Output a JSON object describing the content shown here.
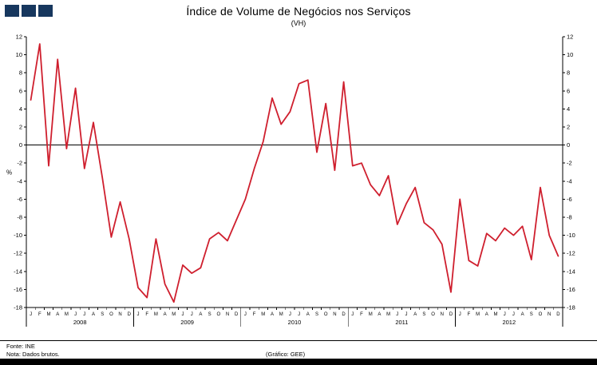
{
  "logo": {
    "color": "#17375E",
    "square_count": 3
  },
  "footer": {
    "source": "Fonte: INE",
    "note": "Nota: Dados brutos.",
    "credit": "(Gráfico: GEE)"
  },
  "chart_data": {
    "type": "line",
    "title": "Índice de Volume de Negócios nos Serviços",
    "subtitle": "(VH)",
    "ylabel": "%",
    "xlabel": "",
    "ylim": [
      -18,
      12
    ],
    "ytick_step": 2,
    "grid": false,
    "zero_line": true,
    "legend": "none",
    "series_color": "#CF1F2E",
    "years": [
      "2008",
      "2009",
      "2010",
      "2011",
      "2012"
    ],
    "month_letters": [
      "J",
      "F",
      "M",
      "A",
      "M",
      "J",
      "J",
      "A",
      "S",
      "O",
      "N",
      "D"
    ],
    "series_name": "Índice de Volume de Negócios nos Serviços (VH)",
    "values": [
      5.0,
      11.2,
      -2.3,
      9.5,
      -0.4,
      6.3,
      -2.6,
      2.5,
      -3.6,
      -10.2,
      -6.3,
      -10.4,
      -15.8,
      -16.9,
      -10.4,
      -15.4,
      -17.4,
      -13.3,
      -14.2,
      -13.6,
      -10.4,
      -9.7,
      -10.6,
      -8.3,
      -6.0,
      -2.6,
      0.4,
      5.2,
      2.3,
      3.7,
      6.8,
      7.2,
      -0.8,
      4.6,
      -2.8,
      7.0,
      -2.3,
      -2.0,
      -4.4,
      -5.6,
      -3.4,
      -8.8,
      -6.5,
      -4.7,
      -8.6,
      -9.4,
      -11.0,
      -16.3,
      -6.0,
      -12.8,
      -13.4,
      -9.8,
      -10.6,
      -9.2,
      -10.0,
      -9.0,
      -12.7,
      -4.7,
      -10.0,
      -12.3
    ]
  }
}
